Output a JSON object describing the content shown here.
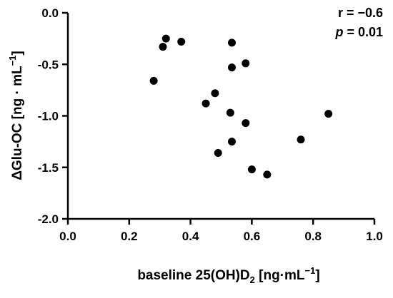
{
  "chart_data": {
    "type": "scatter",
    "title": "",
    "xlabel": {
      "prefix": "baseline 25(OH)D",
      "sub": "2",
      "unit_open": " [ng·mL",
      "sup": "−1",
      "unit_close": "]"
    },
    "ylabel": {
      "prefix": "ΔGlu-OC [ng · mL",
      "sup": "−1",
      "suffix": "]"
    },
    "xlim": [
      0.0,
      1.0
    ],
    "ylim": [
      -2.0,
      0.0
    ],
    "x_ticks": [
      "0.0",
      "0.2",
      "0.4",
      "0.6",
      "0.8",
      "1.0"
    ],
    "y_ticks": [
      "0.0",
      "-0.5",
      "-1.0",
      "-1.5",
      "-2.0"
    ],
    "grid": false,
    "legend": "none",
    "marker_color": "#000000",
    "annotations": {
      "r_label": "r = −0.6",
      "p_symbol": "p",
      "p_rest": " = 0.01"
    },
    "points": [
      {
        "x": 0.28,
        "y": -0.66
      },
      {
        "x": 0.31,
        "y": -0.33
      },
      {
        "x": 0.32,
        "y": -0.25
      },
      {
        "x": 0.37,
        "y": -0.28
      },
      {
        "x": 0.45,
        "y": -0.88
      },
      {
        "x": 0.48,
        "y": -0.78
      },
      {
        "x": 0.49,
        "y": -1.36
      },
      {
        "x": 0.53,
        "y": -0.97
      },
      {
        "x": 0.535,
        "y": -0.29
      },
      {
        "x": 0.535,
        "y": -0.53
      },
      {
        "x": 0.535,
        "y": -1.25
      },
      {
        "x": 0.58,
        "y": -0.49
      },
      {
        "x": 0.58,
        "y": -1.07
      },
      {
        "x": 0.6,
        "y": -1.52
      },
      {
        "x": 0.65,
        "y": -1.57
      },
      {
        "x": 0.76,
        "y": -1.23
      },
      {
        "x": 0.85,
        "y": -0.98
      }
    ]
  }
}
